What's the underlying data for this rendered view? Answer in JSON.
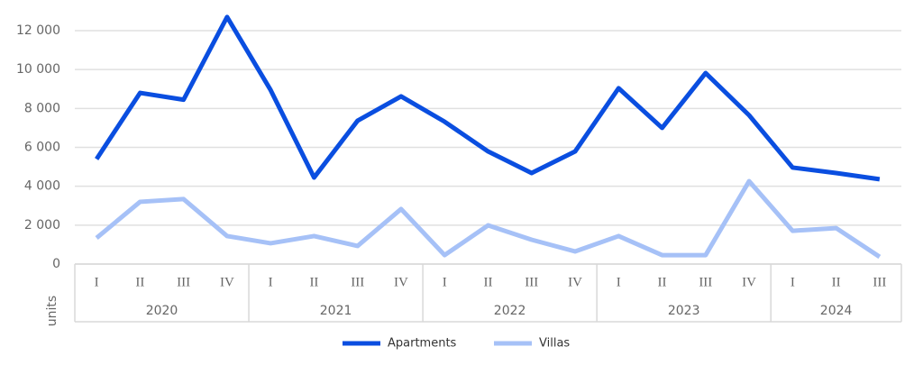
{
  "chart_data": {
    "type": "line",
    "y_axis_label": "units",
    "categories": [
      "I",
      "II",
      "III",
      "IV",
      "I",
      "II",
      "III",
      "IV",
      "I",
      "II",
      "III",
      "IV",
      "I",
      "II",
      "III",
      "IV",
      "I",
      "II",
      "III"
    ],
    "groups": [
      {
        "label": "2020",
        "size": 4
      },
      {
        "label": "2021",
        "size": 4
      },
      {
        "label": "2022",
        "size": 4
      },
      {
        "label": "2023",
        "size": 4
      },
      {
        "label": "2024",
        "size": 3
      }
    ],
    "series": [
      {
        "name": "Apartments",
        "color": "#0a4ee0",
        "values": [
          5400,
          8800,
          8450,
          12700,
          8950,
          4450,
          7370,
          8620,
          7320,
          5790,
          4680,
          5790,
          9040,
          7000,
          9820,
          7650,
          4960,
          4680,
          4360
        ]
      },
      {
        "name": "Villas",
        "color": "#a6c1f7",
        "values": [
          1340,
          3200,
          3340,
          1440,
          1070,
          1440,
          930,
          2830,
          460,
          1990,
          1250,
          650,
          1440,
          460,
          460,
          4260,
          1710,
          1850,
          370
        ]
      }
    ],
    "ylim": [
      0,
      12000
    ],
    "yticks": [
      0,
      {
        "value": 2000,
        "label": "2 000"
      },
      {
        "value": 4000,
        "label": "4 000"
      },
      {
        "value": 6000,
        "label": "6 000"
      },
      {
        "value": 8000,
        "label": "8 000"
      },
      {
        "value": 10000,
        "label": "10 000"
      },
      {
        "value": 12000,
        "label": "12 000"
      }
    ],
    "grid": true,
    "legend": "bottom"
  }
}
